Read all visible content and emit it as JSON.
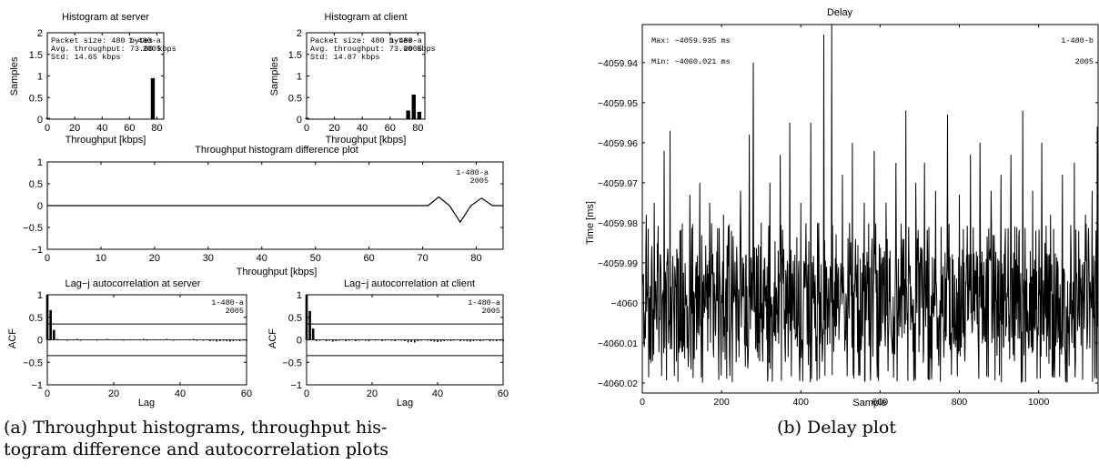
{
  "captions": {
    "a_line1": "(a) Throughput histograms, throughput his-",
    "a_line2": "togram difference and autocorrelation plots",
    "b": "(b) Delay plot"
  },
  "chart_data": [
    {
      "id": "hist_server",
      "type": "bar",
      "title": "Histogram at server",
      "xlabel": "Throughput [kbps]",
      "ylabel": "Samples",
      "xlim": [
        0,
        85
      ],
      "ylim": [
        0,
        2
      ],
      "xticks": [
        0,
        20,
        40,
        60,
        80
      ],
      "yticks": [
        0,
        0.5,
        1,
        1.5,
        2
      ],
      "bars": [
        {
          "x": 0.5,
          "y": 0.03
        },
        {
          "x": 77,
          "y": 0.95
        }
      ],
      "annotations": [
        "Packet size: 480 bytes",
        "Avg. throughput: 73.60 kbps",
        "Std: 14.65 kbps"
      ],
      "tag": [
        "1-480-a",
        "2005"
      ]
    },
    {
      "id": "hist_client",
      "type": "bar",
      "title": "Histogram at client",
      "xlabel": "Throughput [kbps]",
      "ylabel": "Samples",
      "xlim": [
        0,
        85
      ],
      "ylim": [
        0,
        2
      ],
      "xticks": [
        0,
        20,
        40,
        60,
        80
      ],
      "yticks": [
        0,
        0.5,
        1,
        1.5,
        2
      ],
      "bars": [
        {
          "x": 0.5,
          "y": 0.03
        },
        {
          "x": 73,
          "y": 0.2
        },
        {
          "x": 77,
          "y": 0.57
        },
        {
          "x": 81,
          "y": 0.17
        }
      ],
      "annotations": [
        "Packet size: 480 bytes",
        "Avg. throughput: 73.60 kbps",
        "Std: 14.87 kbps"
      ],
      "tag": [
        "1-480-a",
        "2005"
      ]
    },
    {
      "id": "hist_diff",
      "type": "line",
      "title": "Throughput histogram difference plot",
      "xlabel": "Throughput [kbps]",
      "ylabel": "",
      "xlim": [
        0,
        85
      ],
      "ylim": [
        -1,
        1
      ],
      "xticks": [
        0,
        10,
        20,
        30,
        40,
        50,
        60,
        70,
        80
      ],
      "yticks": [
        -1,
        -0.5,
        0,
        0.5,
        1
      ],
      "x": [
        0,
        71,
        73,
        75,
        77,
        79,
        81,
        83,
        85
      ],
      "y": [
        0,
        0,
        0.2,
        0,
        -0.38,
        0,
        0.17,
        0,
        0
      ],
      "tag": [
        "1-480-a",
        "2005"
      ]
    },
    {
      "id": "acf_server",
      "type": "bar",
      "title": "Lag−j autocorrelation at server",
      "xlabel": "Lag",
      "ylabel": "ACF",
      "xlim": [
        0,
        60
      ],
      "ylim": [
        -1,
        1
      ],
      "xticks": [
        0,
        20,
        40,
        60
      ],
      "yticks": [
        -1,
        -0.5,
        0,
        0.5,
        1
      ],
      "confidence": 0.35,
      "lags": [
        0,
        1,
        2,
        3,
        4,
        5,
        6,
        7,
        8,
        9,
        10,
        11,
        12,
        13,
        14,
        15,
        16,
        17,
        18,
        19,
        20,
        21,
        22,
        23,
        24,
        25,
        26,
        27,
        28,
        29,
        30,
        31,
        32,
        33,
        34,
        35,
        36,
        37,
        38,
        39,
        40,
        41,
        42,
        43,
        44,
        45,
        46,
        47,
        48,
        49,
        50,
        51,
        52,
        53,
        54,
        55,
        56,
        57,
        58,
        59,
        60
      ],
      "values": [
        1,
        0.66,
        0.22,
        0.02,
        -0.01,
        0.01,
        -0.02,
        0.01,
        -0.01,
        0.02,
        -0.02,
        0.01,
        -0.01,
        0,
        0.01,
        -0.02,
        0.01,
        -0.01,
        0.02,
        -0.01,
        0,
        -0.01,
        0.01,
        -0.02,
        0.01,
        -0.01,
        0,
        0.01,
        -0.01,
        0.02,
        -0.02,
        0.01,
        -0.01,
        0,
        0.01,
        -0.01,
        0.02,
        -0.01,
        -0.02,
        0.01,
        -0.01,
        0,
        0.01,
        -0.01,
        0.02,
        -0.02,
        0.01,
        -0.02,
        0,
        -0.03,
        -0.02,
        -0.04,
        -0.03,
        -0.02,
        -0.03,
        -0.04,
        -0.03,
        -0.02,
        -0.03,
        -0.02,
        -0.03
      ],
      "tag": [
        "1-480-a",
        "2005"
      ]
    },
    {
      "id": "acf_client",
      "type": "bar",
      "title": "Lag−j autocorrelation at client",
      "xlabel": "Lag",
      "ylabel": "ACF",
      "xlim": [
        0,
        60
      ],
      "ylim": [
        -1,
        1
      ],
      "xticks": [
        0,
        20,
        40,
        60
      ],
      "yticks": [
        -1,
        -0.5,
        0,
        0.5,
        1
      ],
      "confidence": 0.35,
      "lags": [
        0,
        1,
        2,
        3,
        4,
        5,
        6,
        7,
        8,
        9,
        10,
        11,
        12,
        13,
        14,
        15,
        16,
        17,
        18,
        19,
        20,
        21,
        22,
        23,
        24,
        25,
        26,
        27,
        28,
        29,
        30,
        31,
        32,
        33,
        34,
        35,
        36,
        37,
        38,
        39,
        40,
        41,
        42,
        43,
        44,
        45,
        46,
        47,
        48,
        49,
        50,
        51,
        52,
        53,
        54,
        55,
        56,
        57,
        58,
        59,
        60
      ],
      "values": [
        1,
        0.64,
        0.25,
        -0.03,
        -0.02,
        0.01,
        -0.03,
        -0.02,
        -0.04,
        -0.03,
        -0.02,
        -0.01,
        -0.03,
        -0.02,
        -0.01,
        -0.03,
        -0.02,
        -0.01,
        -0.02,
        -0.03,
        -0.01,
        -0.02,
        -0.01,
        -0.03,
        -0.02,
        -0.01,
        -0.02,
        -0.03,
        -0.01,
        -0.02,
        -0.03,
        -0.06,
        -0.05,
        -0.06,
        -0.03,
        -0.02,
        -0.01,
        -0.02,
        -0.03,
        -0.04,
        -0.05,
        -0.04,
        -0.03,
        -0.02,
        -0.03,
        -0.02,
        -0.01,
        -0.03,
        -0.02,
        -0.03,
        -0.04,
        -0.03,
        -0.02,
        -0.03,
        -0.02,
        -0.01,
        -0.03,
        -0.02,
        -0.03,
        -0.02,
        -0.03
      ],
      "tag": [
        "1-480-a",
        "2005"
      ]
    },
    {
      "id": "delay",
      "type": "line",
      "title": "Delay",
      "xlabel": "Sample",
      "ylabel": "Time [ms]",
      "xlim": [
        0,
        1150
      ],
      "ylim": [
        -4060.0225,
        -4059.9305
      ],
      "xticks": [
        0,
        200,
        400,
        600,
        800,
        1000
      ],
      "yticks": [
        -4060.02,
        -4060.01,
        -4060,
        -4059.99,
        -4059.98,
        -4059.97,
        -4059.96,
        -4059.95,
        -4059.94
      ],
      "ytick_labels": [
        "−4060.02",
        "−4060.01",
        "−4060",
        "−4059.99",
        "−4059.98",
        "−4059.97",
        "−4059.96",
        "−4059.95",
        "−4059.94"
      ],
      "series": [
        {
          "n_samples": 1150,
          "baseline": -4060.0,
          "band_low": -4060.018,
          "band_high": -4059.982,
          "spikes": [
            {
              "x": 10,
              "y": -4059.978
            },
            {
              "x": 30,
              "y": -4059.975
            },
            {
              "x": 55,
              "y": -4059.962
            },
            {
              "x": 70,
              "y": -4059.957
            },
            {
              "x": 95,
              "y": -4059.982
            },
            {
              "x": 120,
              "y": -4059.973
            },
            {
              "x": 145,
              "y": -4059.97
            },
            {
              "x": 170,
              "y": -4059.975
            },
            {
              "x": 205,
              "y": -4059.978
            },
            {
              "x": 225,
              "y": -4059.982
            },
            {
              "x": 248,
              "y": -4059.972
            },
            {
              "x": 270,
              "y": -4059.958
            },
            {
              "x": 280,
              "y": -4059.94
            },
            {
              "x": 300,
              "y": -4059.98
            },
            {
              "x": 322,
              "y": -4059.97
            },
            {
              "x": 348,
              "y": -4059.963
            },
            {
              "x": 372,
              "y": -4059.955
            },
            {
              "x": 400,
              "y": -4059.975
            },
            {
              "x": 425,
              "y": -4059.955
            },
            {
              "x": 445,
              "y": -4059.98
            },
            {
              "x": 458,
              "y": -4059.933
            },
            {
              "x": 478,
              "y": -4059.9305
            },
            {
              "x": 505,
              "y": -4059.968
            },
            {
              "x": 530,
              "y": -4059.96
            },
            {
              "x": 560,
              "y": -4059.975
            },
            {
              "x": 585,
              "y": -4059.962
            },
            {
              "x": 615,
              "y": -4059.975
            },
            {
              "x": 640,
              "y": -4059.965
            },
            {
              "x": 665,
              "y": -4059.952
            },
            {
              "x": 690,
              "y": -4059.97
            },
            {
              "x": 712,
              "y": -4059.965
            },
            {
              "x": 740,
              "y": -4059.972
            },
            {
              "x": 770,
              "y": -4059.953
            },
            {
              "x": 800,
              "y": -4059.973
            },
            {
              "x": 828,
              "y": -4059.963
            },
            {
              "x": 852,
              "y": -4059.96
            },
            {
              "x": 880,
              "y": -4059.972
            },
            {
              "x": 905,
              "y": -4059.968
            },
            {
              "x": 930,
              "y": -4059.963
            },
            {
              "x": 960,
              "y": -4059.952
            },
            {
              "x": 985,
              "y": -4059.972
            },
            {
              "x": 1008,
              "y": -4059.96
            },
            {
              "x": 1030,
              "y": -4059.978
            },
            {
              "x": 1060,
              "y": -4059.968
            },
            {
              "x": 1090,
              "y": -4059.965
            },
            {
              "x": 1118,
              "y": -4059.978
            },
            {
              "x": 1135,
              "y": -4059.972
            },
            {
              "x": 1148,
              "y": -4059.956
            }
          ]
        }
      ],
      "annotations": [
        "Max: −4059.935 ms",
        "Min: −4060.021 ms"
      ],
      "tag": [
        "1-480-b",
        "2005"
      ]
    }
  ]
}
